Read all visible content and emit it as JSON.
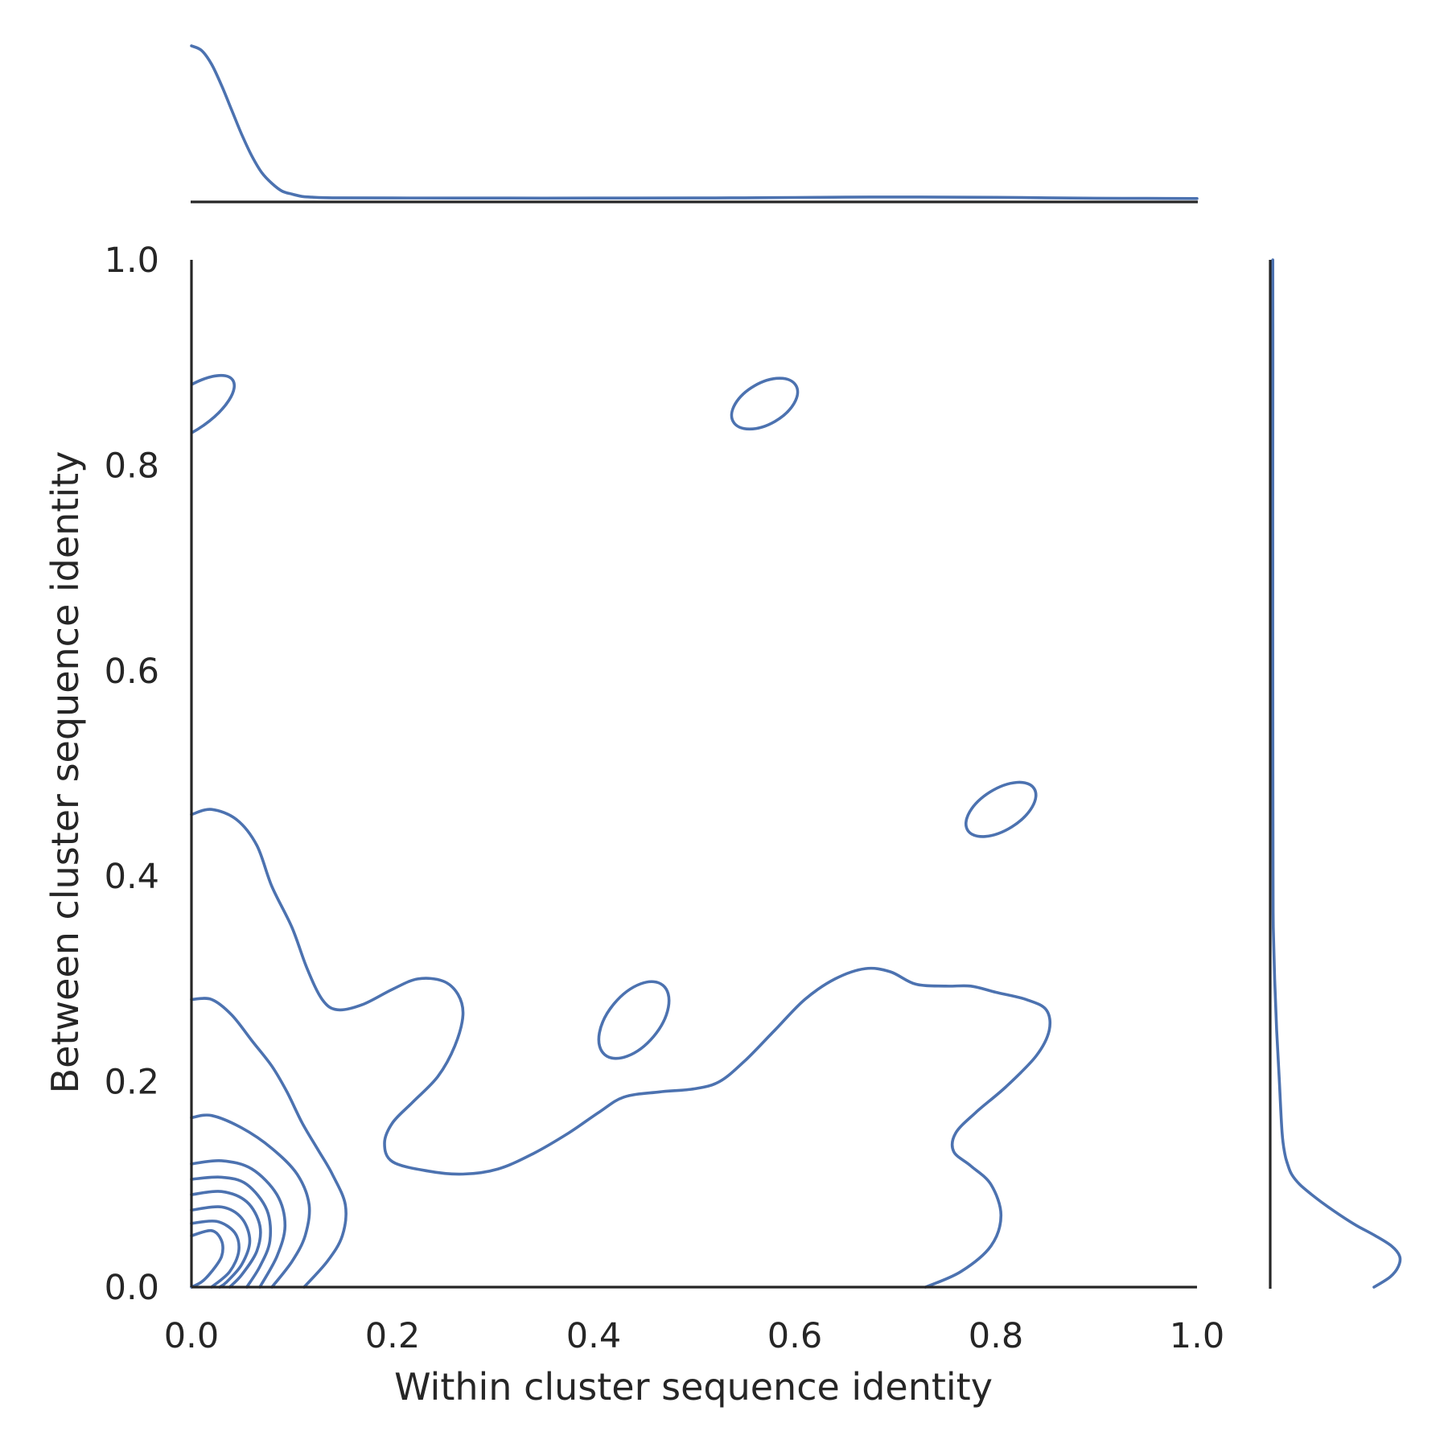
{
  "chart_data": {
    "type": "kde-joint",
    "title": "",
    "xlabel": "Within cluster sequence identity",
    "ylabel": "Between cluster sequence identity",
    "xlim": [
      0.0,
      1.0
    ],
    "ylim": [
      0.0,
      1.0
    ],
    "xticks": [
      "0.0",
      "0.2",
      "0.4",
      "0.6",
      "0.8",
      "1.0"
    ],
    "yticks": [
      "0.0",
      "0.2",
      "0.4",
      "0.6",
      "0.8",
      "1.0"
    ],
    "grid": false,
    "line_color": "#4c72b0",
    "axis_color": "#262626",
    "contours": [
      {
        "level": 1,
        "points": [
          [
            0.0,
            0.46
          ],
          [
            0.02,
            0.465
          ],
          [
            0.045,
            0.455
          ],
          [
            0.065,
            0.43
          ],
          [
            0.08,
            0.39
          ],
          [
            0.1,
            0.35
          ],
          [
            0.115,
            0.31
          ],
          [
            0.13,
            0.28
          ],
          [
            0.145,
            0.27
          ],
          [
            0.17,
            0.275
          ],
          [
            0.2,
            0.29
          ],
          [
            0.225,
            0.3
          ],
          [
            0.25,
            0.298
          ],
          [
            0.265,
            0.285
          ],
          [
            0.27,
            0.265
          ],
          [
            0.262,
            0.235
          ],
          [
            0.245,
            0.205
          ],
          [
            0.22,
            0.18
          ],
          [
            0.2,
            0.16
          ],
          [
            0.192,
            0.14
          ],
          [
            0.2,
            0.122
          ],
          [
            0.235,
            0.113
          ],
          [
            0.27,
            0.11
          ],
          [
            0.305,
            0.115
          ],
          [
            0.34,
            0.13
          ],
          [
            0.375,
            0.15
          ],
          [
            0.405,
            0.17
          ],
          [
            0.43,
            0.185
          ],
          [
            0.465,
            0.19
          ],
          [
            0.5,
            0.193
          ],
          [
            0.525,
            0.2
          ],
          [
            0.55,
            0.22
          ],
          [
            0.58,
            0.25
          ],
          [
            0.61,
            0.28
          ],
          [
            0.64,
            0.3
          ],
          [
            0.67,
            0.31
          ],
          [
            0.695,
            0.307
          ],
          [
            0.72,
            0.295
          ],
          [
            0.75,
            0.293
          ],
          [
            0.775,
            0.293
          ],
          [
            0.8,
            0.287
          ],
          [
            0.83,
            0.28
          ],
          [
            0.85,
            0.27
          ],
          [
            0.853,
            0.25
          ],
          [
            0.84,
            0.225
          ],
          [
            0.81,
            0.195
          ],
          [
            0.78,
            0.17
          ],
          [
            0.76,
            0.15
          ],
          [
            0.758,
            0.132
          ],
          [
            0.775,
            0.118
          ],
          [
            0.795,
            0.1
          ],
          [
            0.805,
            0.07
          ],
          [
            0.795,
            0.04
          ],
          [
            0.765,
            0.015
          ],
          [
            0.73,
            0.0
          ]
        ]
      },
      {
        "level": 2,
        "points": [
          [
            0.0,
            0.28
          ],
          [
            0.02,
            0.28
          ],
          [
            0.04,
            0.265
          ],
          [
            0.06,
            0.24
          ],
          [
            0.08,
            0.215
          ],
          [
            0.095,
            0.19
          ],
          [
            0.11,
            0.16
          ],
          [
            0.125,
            0.135
          ],
          [
            0.14,
            0.11
          ],
          [
            0.153,
            0.08
          ],
          [
            0.15,
            0.05
          ],
          [
            0.135,
            0.025
          ],
          [
            0.112,
            0.0
          ]
        ]
      },
      {
        "level": 3,
        "points": [
          [
            0.0,
            0.165
          ],
          [
            0.02,
            0.167
          ],
          [
            0.05,
            0.155
          ],
          [
            0.08,
            0.135
          ],
          [
            0.105,
            0.11
          ],
          [
            0.117,
            0.08
          ],
          [
            0.113,
            0.05
          ],
          [
            0.1,
            0.025
          ],
          [
            0.08,
            0.0
          ]
        ]
      },
      {
        "level": 4,
        "points": [
          [
            0.0,
            0.12
          ],
          [
            0.03,
            0.123
          ],
          [
            0.06,
            0.115
          ],
          [
            0.085,
            0.09
          ],
          [
            0.093,
            0.06
          ],
          [
            0.085,
            0.03
          ],
          [
            0.068,
            0.0
          ]
        ]
      },
      {
        "level": 5,
        "points": [
          [
            0.0,
            0.105
          ],
          [
            0.03,
            0.107
          ],
          [
            0.055,
            0.1
          ],
          [
            0.075,
            0.075
          ],
          [
            0.078,
            0.045
          ],
          [
            0.068,
            0.02
          ],
          [
            0.055,
            0.0
          ]
        ]
      },
      {
        "level": 6,
        "points": [
          [
            0.0,
            0.09
          ],
          [
            0.03,
            0.093
          ],
          [
            0.055,
            0.083
          ],
          [
            0.068,
            0.06
          ],
          [
            0.065,
            0.035
          ],
          [
            0.05,
            0.012
          ],
          [
            0.038,
            0.0
          ]
        ]
      },
      {
        "level": 7,
        "points": [
          [
            0.0,
            0.075
          ],
          [
            0.03,
            0.078
          ],
          [
            0.05,
            0.067
          ],
          [
            0.058,
            0.045
          ],
          [
            0.05,
            0.022
          ],
          [
            0.035,
            0.005
          ],
          [
            0.028,
            0.0
          ]
        ]
      },
      {
        "level": 8,
        "points": [
          [
            0.0,
            0.062
          ],
          [
            0.025,
            0.064
          ],
          [
            0.043,
            0.053
          ],
          [
            0.047,
            0.035
          ],
          [
            0.038,
            0.015
          ],
          [
            0.02,
            0.0
          ]
        ]
      },
      {
        "level": 9,
        "points": [
          [
            0.0,
            0.05
          ],
          [
            0.02,
            0.055
          ],
          [
            0.03,
            0.045
          ],
          [
            0.03,
            0.03
          ],
          [
            0.02,
            0.015
          ],
          [
            0.01,
            0.005
          ],
          [
            0.0,
            0.0
          ]
        ]
      }
    ],
    "islands": [
      {
        "cx": 0.57,
        "cy": 0.86,
        "rx": 0.036,
        "ry": 0.02,
        "angle": -30
      },
      {
        "cx": 0.805,
        "cy": 0.465,
        "rx": 0.039,
        "ry": 0.02,
        "angle": -32
      },
      {
        "cx": 0.44,
        "cy": 0.26,
        "rx": 0.045,
        "ry": 0.025,
        "angle": -50
      },
      {
        "cx": 0.0,
        "cy": 0.855,
        "rx": 0.05,
        "ry": 0.02,
        "angle": -35
      }
    ],
    "marginal_x": {
      "x": [
        0.0,
        0.01,
        0.02,
        0.03,
        0.04,
        0.05,
        0.06,
        0.07,
        0.08,
        0.09,
        0.1,
        0.11,
        0.12,
        0.14,
        0.2,
        0.3,
        0.4,
        0.5,
        0.55,
        0.6,
        0.65,
        0.7,
        0.75,
        0.8,
        0.85,
        0.9,
        0.95,
        1.0
      ],
      "density": [
        1.0,
        0.97,
        0.88,
        0.74,
        0.58,
        0.42,
        0.28,
        0.17,
        0.1,
        0.05,
        0.03,
        0.015,
        0.01,
        0.006,
        0.005,
        0.004,
        0.004,
        0.005,
        0.006,
        0.008,
        0.01,
        0.011,
        0.01,
        0.009,
        0.006,
        0.003,
        0.002,
        0.001
      ]
    },
    "marginal_y": {
      "y": [
        0.0,
        0.01,
        0.02,
        0.03,
        0.04,
        0.05,
        0.06,
        0.07,
        0.08,
        0.09,
        0.1,
        0.11,
        0.12,
        0.13,
        0.15,
        0.2,
        0.25,
        0.3,
        0.35,
        0.4,
        0.5,
        0.6,
        0.7,
        0.8,
        0.9,
        1.0
      ],
      "density": [
        0.75,
        0.87,
        0.93,
        0.94,
        0.88,
        0.76,
        0.62,
        0.5,
        0.39,
        0.29,
        0.2,
        0.14,
        0.11,
        0.09,
        0.07,
        0.05,
        0.03,
        0.015,
        0.005,
        0.003,
        0.002,
        0.001,
        0.001,
        0.001,
        0.002,
        0.001
      ]
    }
  }
}
